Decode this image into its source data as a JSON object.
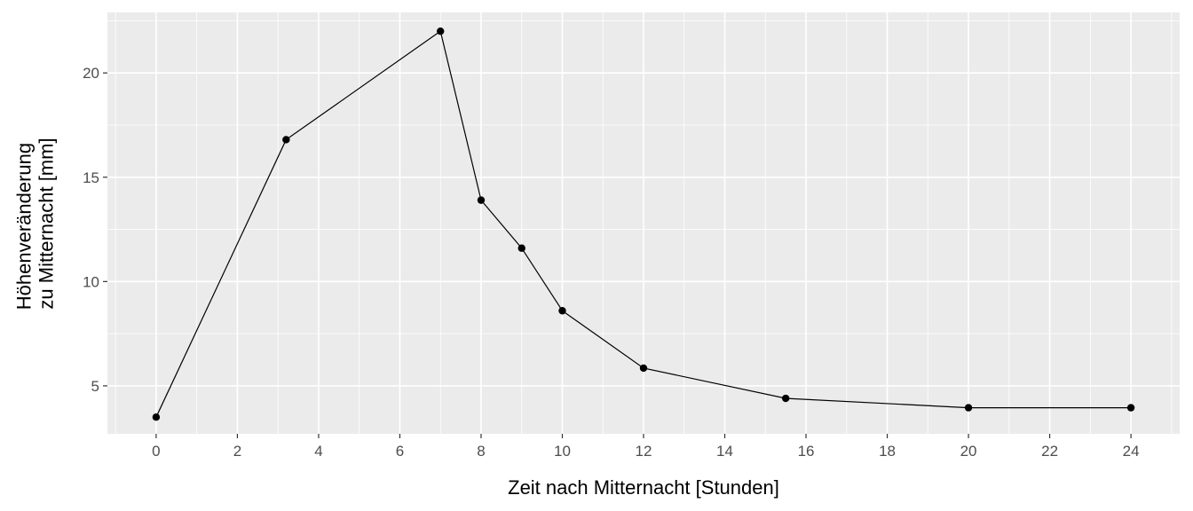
{
  "chart_data": {
    "type": "line",
    "title": "",
    "xlabel": "Zeit nach Mitternacht [Stunden]",
    "ylabel_lines": [
      "Höhenveränderung",
      "zu Mitternacht [mm]"
    ],
    "xlim": [
      -1.2,
      25.2
    ],
    "ylim": [
      2.7,
      22.9
    ],
    "x_ticks": [
      0,
      2,
      4,
      6,
      8,
      10,
      12,
      14,
      16,
      18,
      20,
      22,
      24
    ],
    "y_ticks": [
      5,
      10,
      15,
      20
    ],
    "grid": true,
    "legend": "none",
    "series": [
      {
        "x": [
          0,
          3.2,
          7,
          8,
          9,
          10,
          12,
          15.5,
          20,
          24
        ],
        "y": [
          3.5,
          16.8,
          22.0,
          13.9,
          11.6,
          8.6,
          5.85,
          4.4,
          3.95,
          3.95
        ]
      }
    ],
    "colors": {
      "panel": "#ebebeb",
      "grid": "#ffffff",
      "line": "#000000",
      "point": "#000000",
      "tick": "#333333"
    }
  }
}
